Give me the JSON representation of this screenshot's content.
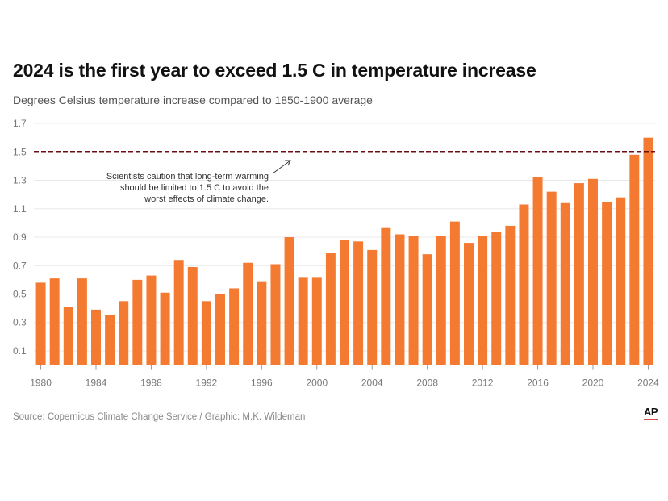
{
  "header": {
    "title": "2024 is the first year to exceed 1.5 C in temperature increase",
    "subtitle": "Degrees Celsius temperature increase compared to 1850-1900 average"
  },
  "footer": {
    "source": "Source: Copernicus Climate Change Service / Graphic: M.K. Wildeman",
    "logo": "AP"
  },
  "colors": {
    "bar": "#f47a31",
    "threshold_line": "#6b0f14",
    "grid": "#e8e8e8",
    "axis_text": "#777777",
    "logo_underline": "#d94a4a"
  },
  "chart_data": {
    "type": "bar",
    "title": "2024 is the first year to exceed 1.5 C in temperature increase",
    "subtitle": "Degrees Celsius temperature increase compared to 1850-1900 average",
    "xlabel": "",
    "ylabel": "",
    "ylim": [
      0,
      1.7
    ],
    "grid": true,
    "yticks": [
      "0.1",
      "0.3",
      "0.5",
      "0.7",
      "0.9",
      "1.1",
      "1.3",
      "1.5",
      "1.7"
    ],
    "ytick_values": [
      0.1,
      0.3,
      0.5,
      0.7,
      0.9,
      1.1,
      1.3,
      1.5,
      1.7
    ],
    "xticks": [
      "1980",
      "1984",
      "1988",
      "1992",
      "1996",
      "2000",
      "2004",
      "2008",
      "2012",
      "2016",
      "2020",
      "2024"
    ],
    "categories": [
      "1980",
      "1981",
      "1982",
      "1983",
      "1984",
      "1985",
      "1986",
      "1987",
      "1988",
      "1989",
      "1990",
      "1991",
      "1992",
      "1993",
      "1994",
      "1995",
      "1996",
      "1997",
      "1998",
      "1999",
      "2000",
      "2001",
      "2002",
      "2003",
      "2004",
      "2005",
      "2006",
      "2007",
      "2008",
      "2009",
      "2010",
      "2011",
      "2012",
      "2013",
      "2014",
      "2015",
      "2016",
      "2017",
      "2018",
      "2019",
      "2020",
      "2021",
      "2022",
      "2023",
      "2024"
    ],
    "values": [
      0.58,
      0.61,
      0.41,
      0.61,
      0.39,
      0.35,
      0.45,
      0.6,
      0.63,
      0.51,
      0.74,
      0.69,
      0.45,
      0.5,
      0.54,
      0.72,
      0.59,
      0.71,
      0.9,
      0.62,
      0.62,
      0.79,
      0.88,
      0.87,
      0.81,
      0.97,
      0.92,
      0.91,
      0.78,
      0.91,
      1.01,
      0.86,
      0.91,
      0.94,
      0.98,
      1.13,
      1.32,
      1.22,
      1.14,
      1.28,
      1.31,
      1.15,
      1.18,
      1.48,
      1.6
    ],
    "reference_line": {
      "value": 1.5,
      "style": "dashed"
    },
    "annotation": {
      "lines": [
        "Scientists caution that long-term warming",
        "should be limited to 1.5 C to avoid the",
        "worst effects of climate change."
      ],
      "points_to": "1.5 threshold line"
    },
    "legend": "none"
  }
}
